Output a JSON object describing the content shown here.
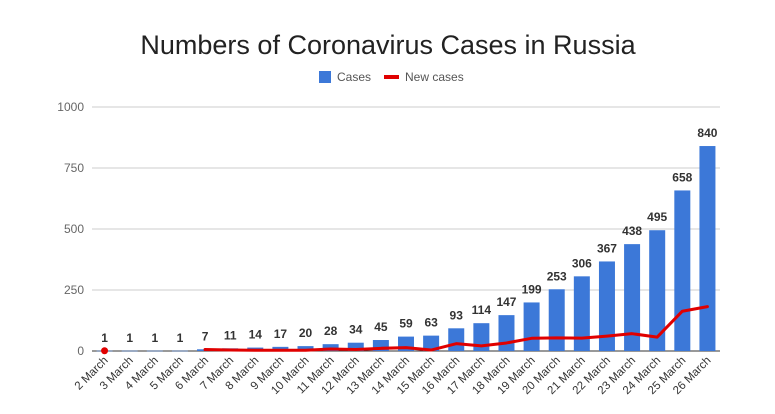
{
  "chart_data": {
    "type": "bar",
    "title": "Numbers of Coronavirus Cases in Russia",
    "categories": [
      "2 March",
      "3 March",
      "4 March",
      "5 March",
      "6 March",
      "7 March",
      "8 March",
      "9 March",
      "10 March",
      "11 March",
      "12 March",
      "13 March",
      "14 March",
      "15 March",
      "16 March",
      "17 March",
      "18 March",
      "19 March",
      "20 March",
      "21 March",
      "22 March",
      "23 March",
      "24 March",
      "25 March",
      "26 March"
    ],
    "series": [
      {
        "name": "Cases",
        "type": "bar",
        "color": "#3c78d8",
        "values": [
          1,
          1,
          1,
          1,
          7,
          11,
          14,
          17,
          20,
          28,
          34,
          45,
          59,
          63,
          93,
          114,
          147,
          199,
          253,
          306,
          367,
          438,
          495,
          658,
          840
        ]
      },
      {
        "name": "New cases",
        "type": "line",
        "color": "#e00000",
        "values": [
          1,
          null,
          null,
          null,
          6,
          4,
          3,
          3,
          3,
          8,
          6,
          11,
          14,
          4,
          30,
          21,
          33,
          52,
          54,
          53,
          61,
          71,
          57,
          163,
          182
        ]
      }
    ],
    "ylim": [
      0,
      1000
    ],
    "yticks": [
      0,
      250,
      500,
      750,
      1000
    ],
    "grid": true,
    "legend": "top-center",
    "xlabel": "",
    "ylabel": ""
  }
}
